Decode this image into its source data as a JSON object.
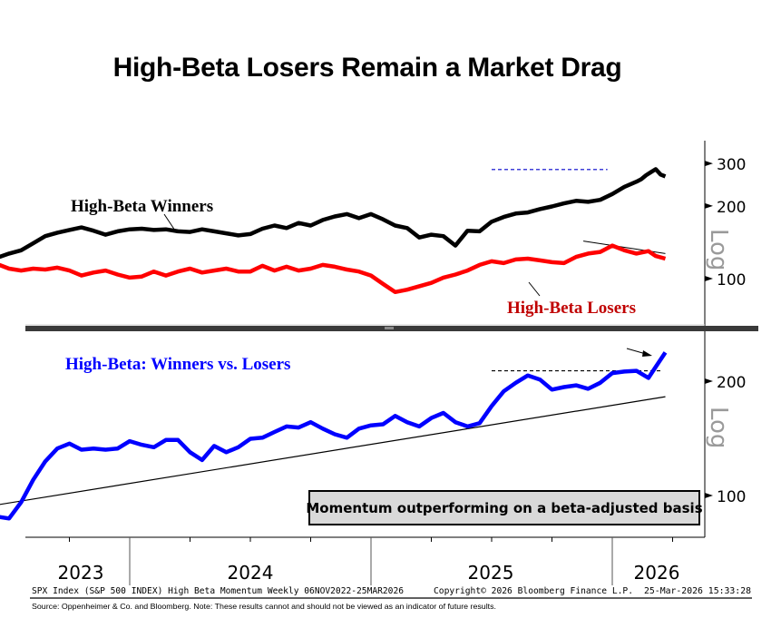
{
  "title": "High-Beta Losers Remain a Market Drag",
  "chart_data": [
    {
      "type": "line",
      "panel": "top",
      "yscale": "log",
      "ylim": [
        58,
        340
      ],
      "yticks": [
        100,
        200,
        300
      ],
      "ylabel": "Log",
      "xlim": [
        2022.85,
        2026.23
      ],
      "annotations": {
        "winners_label": "High-Beta Winners",
        "losers_label": "High-Beta Losers",
        "resistance_line": {
          "from": [
            2025.5,
            283
          ],
          "to": [
            2025.98,
            283
          ],
          "style": "blue-dashed"
        },
        "losers_downtrend": {
          "from": [
            2025.88,
            143
          ],
          "to": [
            2026.22,
            127
          ],
          "style": "black-thin"
        }
      },
      "series": [
        {
          "name": "High-Beta Winners",
          "color": "#000000",
          "points": [
            [
              2022.85,
              113
            ],
            [
              2022.9,
              108
            ],
            [
              2022.95,
              110
            ],
            [
              2023.0,
              104
            ],
            [
              2023.05,
              108
            ],
            [
              2023.1,
              99
            ],
            [
              2023.15,
              93
            ],
            [
              2023.2,
              95
            ],
            [
              2023.25,
              100
            ],
            [
              2023.3,
              104
            ],
            [
              2023.35,
              110
            ],
            [
              2023.4,
              117
            ],
            [
              2023.45,
              122
            ],
            [
              2023.5,
              127
            ],
            [
              2023.55,
              131
            ],
            [
              2023.6,
              140
            ],
            [
              2023.65,
              150
            ],
            [
              2023.7,
              155
            ],
            [
              2023.75,
              159
            ],
            [
              2023.8,
              163
            ],
            [
              2023.85,
              158
            ],
            [
              2023.9,
              152
            ],
            [
              2023.95,
              157
            ],
            [
              2024.0,
              160
            ],
            [
              2024.05,
              161
            ],
            [
              2024.1,
              159
            ],
            [
              2024.15,
              160
            ],
            [
              2024.2,
              157
            ],
            [
              2024.25,
              156
            ],
            [
              2024.3,
              160
            ],
            [
              2024.35,
              157
            ],
            [
              2024.4,
              154
            ],
            [
              2024.45,
              151
            ],
            [
              2024.5,
              153
            ],
            [
              2024.55,
              161
            ],
            [
              2024.6,
              166
            ],
            [
              2024.65,
              162
            ],
            [
              2024.7,
              170
            ],
            [
              2024.75,
              166
            ],
            [
              2024.8,
              175
            ],
            [
              2024.85,
              181
            ],
            [
              2024.9,
              185
            ],
            [
              2024.95,
              178
            ],
            [
              2025.0,
              185
            ],
            [
              2025.05,
              176
            ],
            [
              2025.1,
              166
            ],
            [
              2025.15,
              162
            ],
            [
              2025.2,
              148
            ],
            [
              2025.25,
              152
            ],
            [
              2025.3,
              150
            ],
            [
              2025.35,
              137
            ],
            [
              2025.4,
              158
            ],
            [
              2025.45,
              157
            ],
            [
              2025.5,
              172
            ],
            [
              2025.55,
              180
            ],
            [
              2025.6,
              186
            ],
            [
              2025.65,
              188
            ],
            [
              2025.7,
              194
            ],
            [
              2025.75,
              199
            ],
            [
              2025.8,
              205
            ],
            [
              2025.85,
              210
            ],
            [
              2025.9,
              208
            ],
            [
              2025.95,
              212
            ],
            [
              2026.0,
              224
            ],
            [
              2026.05,
              240
            ],
            [
              2026.1,
              252
            ],
            [
              2026.12,
              258
            ],
            [
              2026.14,
              268
            ],
            [
              2026.16,
              276
            ],
            [
              2026.18,
              284
            ],
            [
              2026.2,
              270
            ],
            [
              2026.22,
              265
            ]
          ]
        },
        {
          "name": "High-Beta Losers",
          "color": "#ff0000",
          "points": [
            [
              2022.85,
              113
            ],
            [
              2022.9,
              106
            ],
            [
              2022.95,
              104
            ],
            [
              2023.0,
              102
            ],
            [
              2023.05,
              105
            ],
            [
              2023.1,
              97
            ],
            [
              2023.15,
              94
            ],
            [
              2023.2,
              89
            ],
            [
              2023.25,
              84
            ],
            [
              2023.3,
              92
            ],
            [
              2023.35,
              99
            ],
            [
              2023.4,
              109
            ],
            [
              2023.45,
              115
            ],
            [
              2023.5,
              110
            ],
            [
              2023.55,
              108
            ],
            [
              2023.6,
              110
            ],
            [
              2023.65,
              109
            ],
            [
              2023.7,
              111
            ],
            [
              2023.75,
              108
            ],
            [
              2023.8,
              103
            ],
            [
              2023.85,
              106
            ],
            [
              2023.9,
              108
            ],
            [
              2023.95,
              104
            ],
            [
              2024.0,
              101
            ],
            [
              2024.05,
              102
            ],
            [
              2024.1,
              107
            ],
            [
              2024.15,
              103
            ],
            [
              2024.2,
              107
            ],
            [
              2024.25,
              110
            ],
            [
              2024.3,
              106
            ],
            [
              2024.35,
              108
            ],
            [
              2024.4,
              110
            ],
            [
              2024.45,
              107
            ],
            [
              2024.5,
              107
            ],
            [
              2024.55,
              113
            ],
            [
              2024.6,
              108
            ],
            [
              2024.65,
              112
            ],
            [
              2024.7,
              108
            ],
            [
              2024.75,
              110
            ],
            [
              2024.8,
              114
            ],
            [
              2024.85,
              112
            ],
            [
              2024.9,
              109
            ],
            [
              2024.95,
              107
            ],
            [
              2025.0,
              103
            ],
            [
              2025.05,
              95
            ],
            [
              2025.1,
              88
            ],
            [
              2025.15,
              90
            ],
            [
              2025.2,
              93
            ],
            [
              2025.25,
              96
            ],
            [
              2025.3,
              101
            ],
            [
              2025.35,
              104
            ],
            [
              2025.4,
              108
            ],
            [
              2025.45,
              114
            ],
            [
              2025.5,
              118
            ],
            [
              2025.55,
              116
            ],
            [
              2025.6,
              120
            ],
            [
              2025.65,
              121
            ],
            [
              2025.7,
              119
            ],
            [
              2025.75,
              117
            ],
            [
              2025.8,
              116
            ],
            [
              2025.85,
              123
            ],
            [
              2025.9,
              127
            ],
            [
              2025.95,
              129
            ],
            [
              2026.0,
              137
            ],
            [
              2026.05,
              131
            ],
            [
              2026.1,
              127
            ],
            [
              2026.15,
              130
            ],
            [
              2026.18,
              124
            ],
            [
              2026.22,
              121
            ]
          ]
        }
      ]
    },
    {
      "type": "line",
      "panel": "bottom",
      "yscale": "log",
      "ylim": [
        75,
        265
      ],
      "yticks": [
        100,
        200
      ],
      "ylabel": "Log",
      "xlim": [
        2022.85,
        2026.23
      ],
      "xticks": [
        "2023",
        "2024",
        "2025",
        "2026"
      ],
      "annotations": {
        "ratio_label": "High-Beta: Winners vs. Losers",
        "callout_box": "Momentum outperforming on a beta-adjusted basis",
        "support_trendline": {
          "from": [
            2023.15,
            88
          ],
          "to": [
            2026.22,
            182
          ],
          "style": "black-thin"
        },
        "resistance_line": {
          "from": [
            2025.5,
            213
          ],
          "to": [
            2026.2,
            213
          ],
          "style": "black-dashed"
        },
        "arrow": "pointing to latest breakout"
      },
      "series": [
        {
          "name": "High-Beta: Winners vs. Losers",
          "color": "#0000ff",
          "points": [
            [
              2022.85,
              82
            ],
            [
              2022.9,
              84
            ],
            [
              2022.95,
              86
            ],
            [
              2023.0,
              88
            ],
            [
              2023.05,
              85
            ],
            [
              2023.1,
              88
            ],
            [
              2023.15,
              92
            ],
            [
              2023.2,
              89
            ],
            [
              2023.25,
              91
            ],
            [
              2023.3,
              98
            ],
            [
              2023.35,
              93
            ],
            [
              2023.4,
              91
            ],
            [
              2023.45,
              88
            ],
            [
              2023.5,
              87
            ],
            [
              2023.55,
              96
            ],
            [
              2023.6,
              110
            ],
            [
              2023.65,
              123
            ],
            [
              2023.7,
              133
            ],
            [
              2023.75,
              137
            ],
            [
              2023.8,
              132
            ],
            [
              2023.85,
              133
            ],
            [
              2023.9,
              132
            ],
            [
              2023.95,
              133
            ],
            [
              2024.0,
              139
            ],
            [
              2024.05,
              136
            ],
            [
              2024.1,
              134
            ],
            [
              2024.15,
              140
            ],
            [
              2024.2,
              140
            ],
            [
              2024.25,
              130
            ],
            [
              2024.3,
              124
            ],
            [
              2024.35,
              135
            ],
            [
              2024.4,
              130
            ],
            [
              2024.45,
              134
            ],
            [
              2024.5,
              141
            ],
            [
              2024.55,
              142
            ],
            [
              2024.6,
              147
            ],
            [
              2024.65,
              152
            ],
            [
              2024.7,
              151
            ],
            [
              2024.75,
              156
            ],
            [
              2024.8,
              150
            ],
            [
              2024.85,
              145
            ],
            [
              2024.9,
              142
            ],
            [
              2024.95,
              150
            ],
            [
              2025.0,
              153
            ],
            [
              2025.05,
              154
            ],
            [
              2025.1,
              162
            ],
            [
              2025.15,
              156
            ],
            [
              2025.2,
              152
            ],
            [
              2025.25,
              160
            ],
            [
              2025.3,
              165
            ],
            [
              2025.35,
              156
            ],
            [
              2025.4,
              152
            ],
            [
              2025.45,
              155
            ],
            [
              2025.5,
              172
            ],
            [
              2025.55,
              188
            ],
            [
              2025.6,
              198
            ],
            [
              2025.65,
              207
            ],
            [
              2025.7,
              202
            ],
            [
              2025.75,
              190
            ],
            [
              2025.8,
              193
            ],
            [
              2025.85,
              195
            ],
            [
              2025.9,
              191
            ],
            [
              2025.95,
              198
            ],
            [
              2026.0,
              210
            ],
            [
              2026.05,
              212
            ],
            [
              2026.1,
              213
            ],
            [
              2026.15,
              204
            ],
            [
              2026.18,
              218
            ],
            [
              2026.22,
              238
            ]
          ]
        }
      ]
    }
  ],
  "axis": {
    "ylabel_top": "Log",
    "ylabel_bottom": "Log",
    "top_ticks": [
      "300",
      "200",
      "100"
    ],
    "bottom_ticks": [
      "200",
      "100"
    ],
    "year_labels": [
      "2023",
      "2024",
      "2025",
      "2026"
    ]
  },
  "labels": {
    "winners": "High-Beta Winners",
    "losers": "High-Beta Losers",
    "ratio": "High-Beta: Winners vs. Losers",
    "callout": "Momentum outperforming on a beta-adjusted basis"
  },
  "footer": {
    "bloomberg_left": "SPX Index (S&P 500 INDEX) High Beta Momentum Weekly 06NOV2022-25MAR2026",
    "bloomberg_mid": "Copyright© 2026 Bloomberg Finance L.P.",
    "bloomberg_right": "25-Mar-2026 15:33:28",
    "source": "Source:  Oppenheimer & Co. and Bloomberg. Note:  These results cannot and should not be viewed as an indicator of future results."
  },
  "colors": {
    "winners": "#000000",
    "losers": "#ff0000",
    "ratio": "#0000ff",
    "losers_label": "#c00000",
    "resistance_top": "#0000cc",
    "divider": "#3a3a3a",
    "callout_bg": "#d9d9d9"
  }
}
